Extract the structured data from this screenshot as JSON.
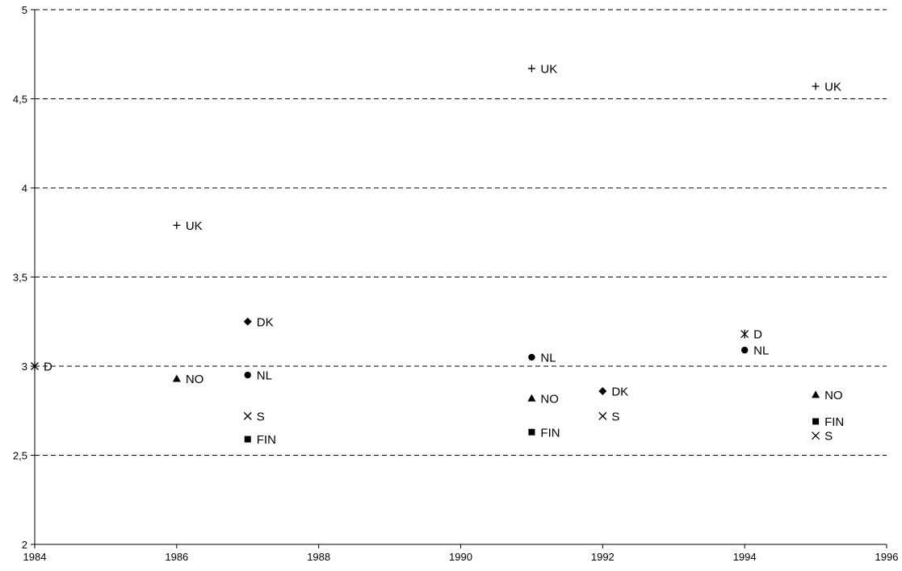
{
  "chart_data": {
    "type": "scatter",
    "title": "",
    "xlabel": "",
    "ylabel": "",
    "xlim": [
      1984,
      1996
    ],
    "ylim": [
      2,
      5
    ],
    "x_ticks": [
      "1984",
      "1986",
      "1988",
      "1990",
      "1992",
      "1994",
      "1996"
    ],
    "y_ticks": [
      "2",
      "2,5",
      "3",
      "3,5",
      "4",
      "4,5",
      "5"
    ],
    "grid": "horizontal-dashed",
    "legend": "none",
    "points": [
      {
        "x": 1984,
        "y": 3.0,
        "label": "D",
        "marker": "asterisk"
      },
      {
        "x": 1986,
        "y": 3.79,
        "label": "UK",
        "marker": "plus"
      },
      {
        "x": 1986,
        "y": 2.93,
        "label": "NO",
        "marker": "triangle"
      },
      {
        "x": 1987,
        "y": 3.25,
        "label": "DK",
        "marker": "diamond"
      },
      {
        "x": 1987,
        "y": 2.95,
        "label": "NL",
        "marker": "circle"
      },
      {
        "x": 1987,
        "y": 2.72,
        "label": "S",
        "marker": "cross"
      },
      {
        "x": 1987,
        "y": 2.59,
        "label": "FIN",
        "marker": "square"
      },
      {
        "x": 1991,
        "y": 4.67,
        "label": "UK",
        "marker": "plus"
      },
      {
        "x": 1991,
        "y": 3.05,
        "label": "NL",
        "marker": "circle"
      },
      {
        "x": 1991,
        "y": 2.82,
        "label": "NO",
        "marker": "triangle"
      },
      {
        "x": 1991,
        "y": 2.63,
        "label": "FIN",
        "marker": "square"
      },
      {
        "x": 1992,
        "y": 2.86,
        "label": "DK",
        "marker": "diamond"
      },
      {
        "x": 1992,
        "y": 2.72,
        "label": "S",
        "marker": "cross"
      },
      {
        "x": 1994,
        "y": 3.18,
        "label": "D",
        "marker": "asterisk"
      },
      {
        "x": 1994,
        "y": 3.09,
        "label": "NL",
        "marker": "circle"
      },
      {
        "x": 1995,
        "y": 4.57,
        "label": "UK",
        "marker": "plus"
      },
      {
        "x": 1995,
        "y": 2.84,
        "label": "NO",
        "marker": "triangle"
      },
      {
        "x": 1995,
        "y": 2.69,
        "label": "FIN",
        "marker": "square"
      },
      {
        "x": 1995,
        "y": 2.61,
        "label": "S",
        "marker": "cross"
      }
    ]
  }
}
